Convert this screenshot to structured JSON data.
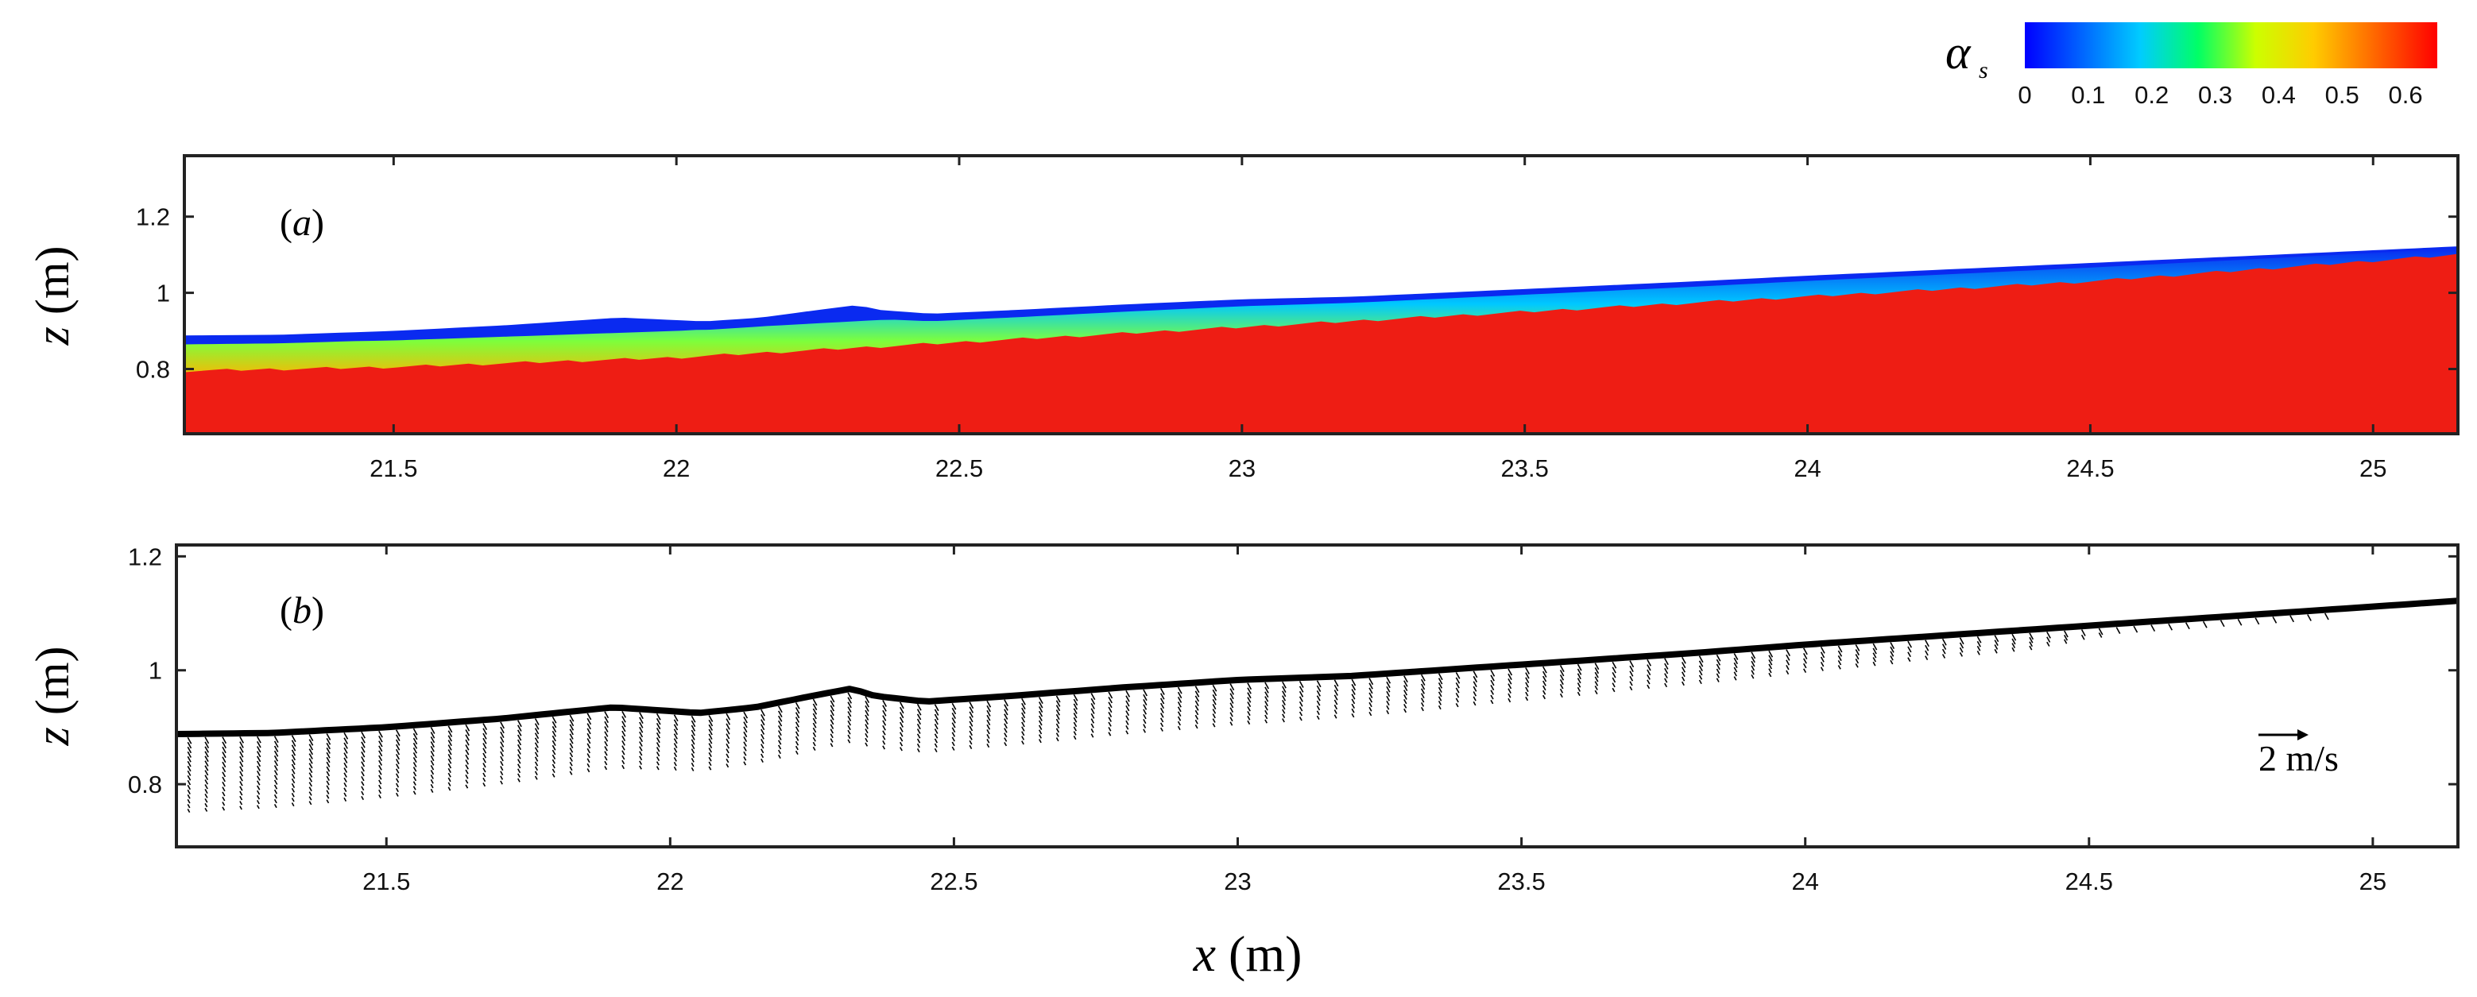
{
  "chart_data": [
    {
      "panel": "(a)",
      "type": "heatmap",
      "description_key": "solid volume fraction field",
      "xlabel_var": "x",
      "xlabel_unit": "(m)",
      "ylabel_var": "z",
      "ylabel_unit": "(m)",
      "xlim": [
        21.13,
        25.15
      ],
      "ylim": [
        0.63,
        1.36
      ],
      "xticks": [
        21.5,
        22,
        22.5,
        23,
        23.5,
        24,
        24.5,
        25
      ],
      "xtick_labels": [
        "21.5",
        "22",
        "22.5",
        "23",
        "23.5",
        "24",
        "24.5",
        "25"
      ],
      "yticks": [
        0.8,
        1.0,
        1.2
      ],
      "ytick_labels": [
        "0.8",
        "1",
        "1.2"
      ],
      "surface": {
        "x": [
          21.13,
          21.3,
          21.5,
          21.7,
          21.9,
          22.05,
          22.15,
          22.25,
          22.32,
          22.36,
          22.45,
          22.6,
          22.8,
          23.0,
          23.2,
          23.5,
          23.8,
          24.0,
          24.3,
          24.6,
          24.9,
          25.15
        ],
        "z": [
          0.888,
          0.89,
          0.9,
          0.915,
          0.935,
          0.925,
          0.935,
          0.955,
          0.968,
          0.955,
          0.945,
          0.955,
          0.97,
          0.983,
          0.99,
          1.01,
          1.03,
          1.045,
          1.065,
          1.085,
          1.105,
          1.122
        ]
      },
      "bed": {
        "x": [
          21.13,
          21.5,
          22.0,
          22.5,
          23.0,
          23.5,
          24.0,
          24.5,
          25.15
        ],
        "z": [
          0.795,
          0.805,
          0.83,
          0.87,
          0.91,
          0.95,
          0.99,
          1.03,
          1.1
        ]
      },
      "colorbar": {
        "label": "α",
        "label_sub": "s",
        "range": [
          0,
          0.65
        ],
        "ticks": [
          "0",
          "0.1",
          "0.2",
          "0.3",
          "0.4",
          "0.5",
          "0.6"
        ],
        "colors": [
          "#0000ff",
          "#0066ff",
          "#00ccff",
          "#00ff66",
          "#ccff00",
          "#ffcc00",
          "#ff6600",
          "#ff0000"
        ]
      },
      "colors": {
        "dilute": "#0a2af0",
        "packed": "#ee1d14"
      }
    },
    {
      "panel": "(b)",
      "type": "vector",
      "description_key": "velocity vectors",
      "xlabel_var": "x",
      "xlabel_unit": "(m)",
      "ylabel_var": "z",
      "ylabel_unit": "(m)",
      "xlim": [
        21.13,
        25.15
      ],
      "ylim": [
        0.69,
        1.22
      ],
      "xticks": [
        21.5,
        22,
        22.5,
        23,
        23.5,
        24,
        24.5,
        25
      ],
      "xtick_labels": [
        "21.5",
        "22",
        "22.5",
        "23",
        "23.5",
        "24",
        "24.5",
        "25"
      ],
      "yticks": [
        0.8,
        1.0,
        1.2
      ],
      "ytick_labels": [
        "0.8",
        "1",
        "1.2"
      ],
      "surface": {
        "x": [
          21.13,
          21.3,
          21.5,
          21.7,
          21.9,
          22.05,
          22.15,
          22.25,
          22.32,
          22.36,
          22.45,
          22.6,
          22.8,
          23.0,
          23.2,
          23.5,
          23.8,
          24.0,
          24.3,
          24.6,
          24.9,
          25.15
        ],
        "z": [
          0.888,
          0.89,
          0.9,
          0.915,
          0.935,
          0.925,
          0.935,
          0.955,
          0.968,
          0.955,
          0.945,
          0.955,
          0.97,
          0.983,
          0.99,
          1.01,
          1.03,
          1.045,
          1.065,
          1.085,
          1.105,
          1.122
        ]
      },
      "vector_depth": {
        "x": [
          21.13,
          21.5,
          22.0,
          22.5,
          23.0,
          23.5,
          24.0,
          24.4,
          24.6,
          25.15
        ],
        "depth": [
          0.135,
          0.12,
          0.1,
          0.085,
          0.075,
          0.06,
          0.045,
          0.03,
          0.005,
          0.0
        ]
      },
      "reference_vector": {
        "label": "2 m/s",
        "magnitude": 2.0
      }
    }
  ]
}
